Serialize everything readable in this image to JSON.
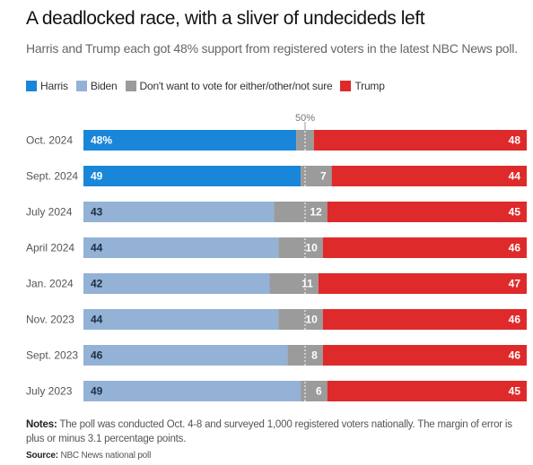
{
  "title": "A deadlocked race, with a sliver of undecideds left",
  "subtitle": "Harris and Trump each got 48% support from registered voters in the latest NBC News poll.",
  "legend": [
    {
      "label": "Harris",
      "color": "#1a86d9"
    },
    {
      "label": "Biden",
      "color": "#93b2d6"
    },
    {
      "label": "Don't want to vote for either/other/not sure",
      "color": "#9b9b9b"
    },
    {
      "label": "Trump",
      "color": "#de2a2a"
    }
  ],
  "notes_label": "Notes:",
  "notes_text": "The poll was conducted Oct. 4-8 and surveyed 1,000 registered voters nationally. The margin of error is plus or minus 3.1 percentage points.",
  "source_label": "Source:",
  "source_text": "NBC News national poll",
  "chart_data": {
    "type": "bar",
    "stacked": true,
    "orientation": "horizontal",
    "midline_label": "50%",
    "categories": [
      "Oct. 2024",
      "Sept. 2024",
      "July 2024",
      "April 2024",
      "Jan. 2024",
      "Nov. 2023",
      "Sept. 2023",
      "July 2023"
    ],
    "series": [
      {
        "name": "Harris",
        "color": "#1a86d9",
        "values": [
          48,
          49,
          null,
          null,
          null,
          null,
          null,
          null
        ],
        "labels": [
          "48%",
          "49",
          "",
          "",
          "",
          "",
          "",
          ""
        ]
      },
      {
        "name": "Biden",
        "color": "#93b2d6",
        "values": [
          null,
          null,
          43,
          44,
          42,
          44,
          46,
          49
        ],
        "labels": [
          "",
          "",
          "43",
          "44",
          "42",
          "44",
          "46",
          "49"
        ]
      },
      {
        "name": "Don't want to vote for either/other/not sure",
        "color": "#9b9b9b",
        "values": [
          4,
          7,
          12,
          10,
          11,
          10,
          8,
          6
        ],
        "labels": [
          "",
          "7",
          "12",
          "10",
          "11",
          "10",
          "8",
          "6"
        ]
      },
      {
        "name": "Trump",
        "color": "#de2a2a",
        "values": [
          48,
          44,
          45,
          46,
          47,
          46,
          46,
          45
        ],
        "labels": [
          "48",
          "44",
          "45",
          "46",
          "47",
          "46",
          "46",
          "45"
        ]
      }
    ]
  }
}
